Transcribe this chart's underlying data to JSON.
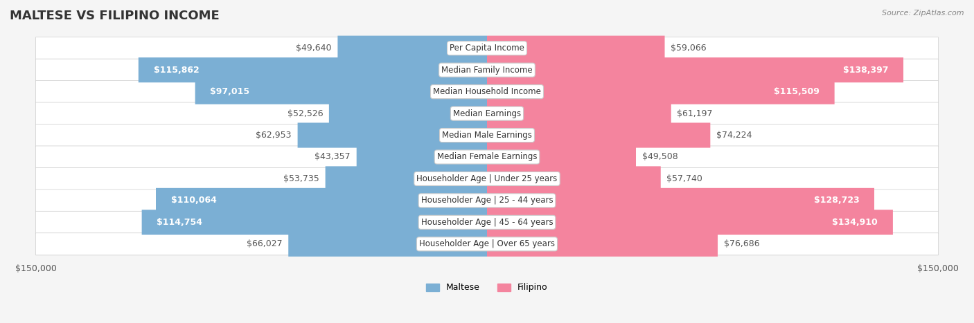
{
  "title": "MALTESE VS FILIPINO INCOME",
  "source": "Source: ZipAtlas.com",
  "categories": [
    "Per Capita Income",
    "Median Family Income",
    "Median Household Income",
    "Median Earnings",
    "Median Male Earnings",
    "Median Female Earnings",
    "Householder Age | Under 25 years",
    "Householder Age | 25 - 44 years",
    "Householder Age | 45 - 64 years",
    "Householder Age | Over 65 years"
  ],
  "maltese_values": [
    49640,
    115862,
    97015,
    52526,
    62953,
    43357,
    53735,
    110064,
    114754,
    66027
  ],
  "filipino_values": [
    59066,
    138397,
    115509,
    61197,
    74224,
    49508,
    57740,
    128723,
    134910,
    76686
  ],
  "maltese_labels": [
    "$49,640",
    "$115,862",
    "$97,015",
    "$52,526",
    "$62,953",
    "$43,357",
    "$53,735",
    "$110,064",
    "$114,754",
    "$66,027"
  ],
  "filipino_labels": [
    "$59,066",
    "$138,397",
    "$115,509",
    "$61,197",
    "$74,224",
    "$49,508",
    "$57,740",
    "$128,723",
    "$134,910",
    "$76,686"
  ],
  "maltese_color": "#7bafd4",
  "filipino_color": "#f4849e",
  "maltese_color_dark": "#5b9abf",
  "filipino_color_dark": "#e8607a",
  "bar_height": 0.55,
  "max_value": 150000,
  "background_color": "#f5f5f5",
  "row_bg_color": "#ececec",
  "label_fontsize": 9,
  "title_fontsize": 13,
  "legend_label_maltese": "Maltese",
  "legend_label_filipino": "Filipino"
}
